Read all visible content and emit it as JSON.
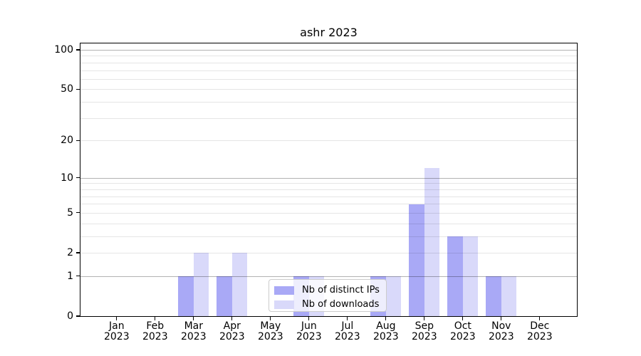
{
  "chart_data": {
    "type": "bar",
    "title": "ashr 2023",
    "categories": [
      "Jan",
      "Feb",
      "Mar",
      "Apr",
      "May",
      "Jun",
      "Jul",
      "Aug",
      "Sep",
      "Oct",
      "Nov",
      "Dec"
    ],
    "category_year": "2023",
    "series": [
      {
        "name": "Nb of distinct IPs",
        "color": "#a9a9f6",
        "values": [
          0,
          0,
          1,
          1,
          0,
          1,
          0,
          1,
          6,
          3,
          1,
          0
        ]
      },
      {
        "name": "Nb of downloads",
        "color": "#d9d9fa",
        "values": [
          0,
          0,
          2,
          2,
          0,
          1,
          0,
          1,
          12,
          3,
          1,
          0
        ]
      }
    ],
    "ylabel": "",
    "xlabel": "",
    "y_scale": "log(1+v)",
    "y_ticks": [
      0,
      1,
      2,
      5,
      10,
      20,
      50,
      100
    ],
    "y_minor_gridlines": [
      3,
      4,
      6,
      7,
      8,
      9,
      30,
      40,
      60,
      70,
      80,
      90
    ],
    "y_emphasized_gridlines": [
      1,
      10,
      100
    ],
    "ylim": [
      0,
      112
    ],
    "grid": "on",
    "legend_position": "lower center",
    "background_color": "#ffffff",
    "text_color": "#000000",
    "gridline_color_light": "#e6e6e6",
    "gridline_color_emphasized": "#b3b3b3"
  }
}
